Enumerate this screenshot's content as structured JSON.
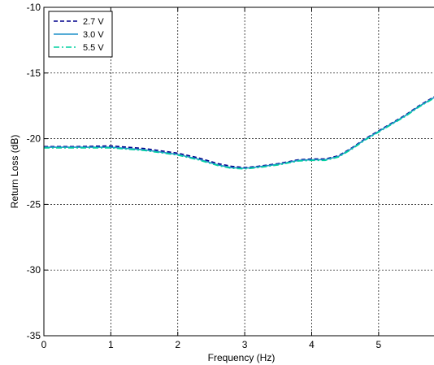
{
  "chart_data": {
    "type": "line",
    "title": "",
    "xlabel": "Frequency (Hz)",
    "ylabel": "Return Loss (dB)",
    "xlim": [
      0,
      5.9
    ],
    "ylim": [
      -35,
      -10
    ],
    "xticks": [
      0,
      1,
      2,
      3,
      4,
      5
    ],
    "yticks": [
      -35,
      -30,
      -25,
      -20,
      -15,
      -10
    ],
    "grid": true,
    "legend_position": "top-left",
    "series": [
      {
        "name": "2.7 V",
        "color": "#00008b",
        "dash": "dashed",
        "x": [
          0,
          0.5,
          1.0,
          1.5,
          2.0,
          2.3,
          2.6,
          2.8,
          3.0,
          3.2,
          3.5,
          3.8,
          4.0,
          4.2,
          4.4,
          4.6,
          4.8,
          5.0,
          5.2,
          5.4,
          5.6,
          5.8,
          5.9
        ],
        "y": [
          -20.6,
          -20.6,
          -20.55,
          -20.75,
          -21.1,
          -21.45,
          -21.9,
          -22.1,
          -22.2,
          -22.1,
          -21.9,
          -21.6,
          -21.55,
          -21.55,
          -21.3,
          -20.7,
          -20.0,
          -19.4,
          -18.8,
          -18.2,
          -17.5,
          -16.9,
          -16.6
        ]
      },
      {
        "name": "3.0 V",
        "color": "#1e90c8",
        "dash": "solid",
        "x": [
          0,
          0.5,
          1.0,
          1.5,
          2.0,
          2.3,
          2.6,
          2.8,
          3.0,
          3.2,
          3.5,
          3.8,
          4.0,
          4.2,
          4.4,
          4.6,
          4.8,
          5.0,
          5.2,
          5.4,
          5.6,
          5.8,
          5.9
        ],
        "y": [
          -20.65,
          -20.65,
          -20.65,
          -20.85,
          -21.2,
          -21.55,
          -22.0,
          -22.2,
          -22.25,
          -22.15,
          -21.95,
          -21.65,
          -21.6,
          -21.6,
          -21.35,
          -20.75,
          -20.05,
          -19.45,
          -18.85,
          -18.25,
          -17.55,
          -16.95,
          -16.65
        ]
      },
      {
        "name": "5.5 V",
        "color": "#00d0a0",
        "dash": "dashdot",
        "x": [
          0,
          0.5,
          1.0,
          1.5,
          2.0,
          2.3,
          2.6,
          2.8,
          3.0,
          3.2,
          3.5,
          3.8,
          4.0,
          4.2,
          4.4,
          4.6,
          4.8,
          5.0,
          5.2,
          5.4,
          5.6,
          5.8,
          5.9
        ],
        "y": [
          -20.7,
          -20.7,
          -20.7,
          -20.9,
          -21.25,
          -21.6,
          -22.05,
          -22.25,
          -22.3,
          -22.2,
          -22.0,
          -21.7,
          -21.65,
          -21.65,
          -21.4,
          -20.8,
          -20.1,
          -19.5,
          -18.9,
          -18.3,
          -17.6,
          -17.0,
          -16.7
        ]
      }
    ]
  }
}
